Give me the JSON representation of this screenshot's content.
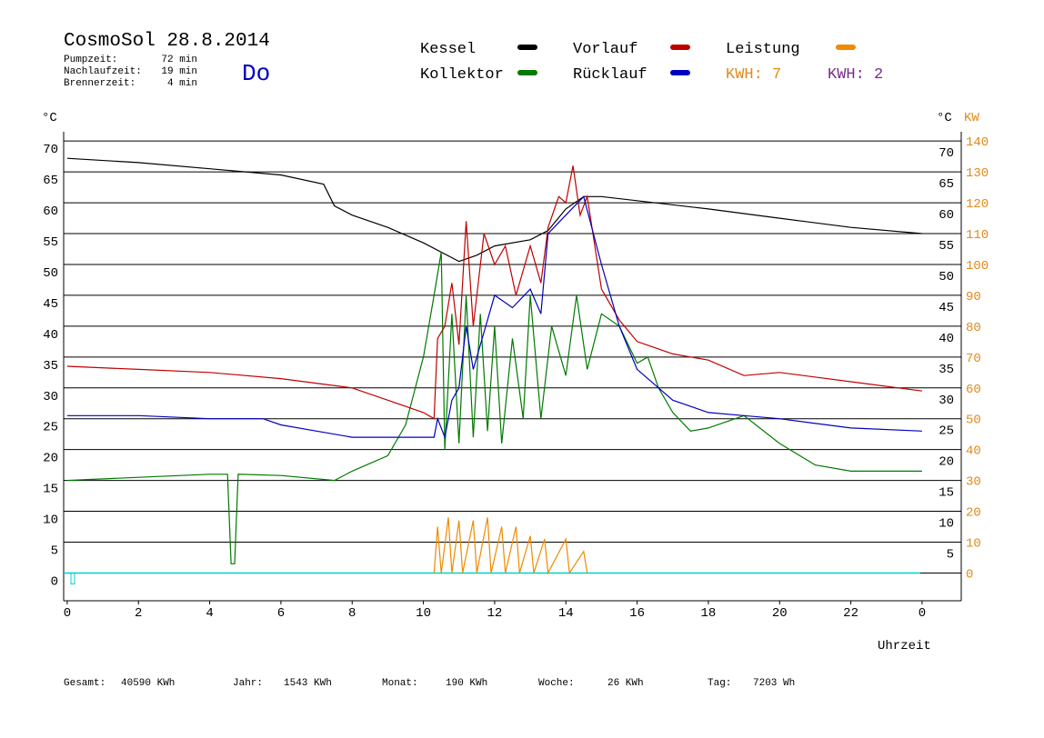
{
  "chart_data": {
    "type": "line",
    "title": "CosmoSol 28.8.2014",
    "day": "Do",
    "info": [
      [
        "Pumpzeit:",
        "72 min"
      ],
      [
        "Nachlaufzeit:",
        "19 min"
      ],
      [
        "Brennerzeit:",
        "4 min"
      ]
    ],
    "y_label": "°C",
    "y2_label_c": "°C",
    "y2_label": "KW",
    "x_label": "Uhrzeit",
    "kwh_labels": [
      {
        "text": "KWH: 7",
        "color": "#e08a1a"
      },
      {
        "text": "KWH: 2",
        "color": "#7a2a8a"
      }
    ],
    "footer": [
      [
        "Gesamt:",
        "40590 KWh"
      ],
      [
        "Jahr:",
        "1543 KWh"
      ],
      [
        "Monat:",
        "190 KWh"
      ],
      [
        "Woche:",
        "26 KWh"
      ],
      [
        "Tag:",
        "7203 Wh"
      ]
    ],
    "xlim": [
      -0.1,
      25.1
    ],
    "xticks": [
      0,
      2,
      4,
      6,
      8,
      10,
      12,
      14,
      16,
      18,
      20,
      22,
      {
        "value": 24,
        "label": "0"
      }
    ],
    "ylim": [
      -4.5,
      71.5
    ],
    "yticks": [
      0,
      5,
      10,
      15,
      20,
      25,
      30,
      35,
      40,
      45,
      50,
      55,
      60,
      65,
      70
    ],
    "yticks_right": [
      5,
      10,
      15,
      20,
      25,
      30,
      35,
      40,
      45,
      50,
      55,
      60,
      65,
      70
    ],
    "y2lim": [
      -9,
      143
    ],
    "y2ticks": [
      0,
      10,
      20,
      30,
      40,
      50,
      60,
      70,
      80,
      90,
      100,
      110,
      120,
      130,
      140
    ],
    "grid": true,
    "series": [
      {
        "name": "Kessel",
        "color": "#000000",
        "x": [
          0,
          2,
          4,
          6,
          7.2,
          7.5,
          8,
          9,
          10,
          11,
          11.5,
          12,
          13,
          13.5,
          14,
          14.5,
          15,
          18,
          20,
          22,
          24
        ],
        "values": [
          67.2,
          66.5,
          65.5,
          64.5,
          63,
          59.5,
          58,
          56,
          53.5,
          50.5,
          51.5,
          53,
          54,
          55.5,
          59,
          61,
          61,
          59,
          57.5,
          56,
          55
        ]
      },
      {
        "name": "Kollektor",
        "color": "#007a00",
        "x": [
          0,
          2,
          4,
          4.5,
          4.6,
          4.7,
          4.8,
          6,
          7.5,
          8,
          9,
          9.5,
          10,
          10.3,
          10.5,
          10.6,
          10.8,
          11,
          11.2,
          11.4,
          11.6,
          11.8,
          12,
          12.2,
          12.5,
          12.8,
          13,
          13.3,
          13.6,
          14,
          14.3,
          14.6,
          15,
          15.5,
          16,
          16.3,
          16.6,
          17,
          17.5,
          18,
          19,
          20,
          21,
          22,
          24
        ],
        "values": [
          15,
          15.5,
          16,
          16,
          1.5,
          1.5,
          16,
          15.8,
          15,
          16.5,
          19,
          24,
          35,
          45,
          52,
          20,
          42,
          21,
          45,
          22,
          42,
          23,
          40,
          21,
          38,
          25,
          45,
          25,
          40,
          32,
          45,
          33,
          42,
          40,
          34,
          35,
          30,
          26,
          23,
          23.5,
          25.5,
          21,
          17.5,
          16.5,
          16.5
        ]
      },
      {
        "name": "Vorlauf",
        "color": "#c00000",
        "x": [
          0,
          2,
          4,
          6,
          8,
          9,
          10,
          10.3,
          10.4,
          10.6,
          10.8,
          11,
          11.2,
          11.4,
          11.7,
          12,
          12.3,
          12.6,
          13,
          13.3,
          13.5,
          13.8,
          14,
          14.2,
          14.4,
          14.6,
          15,
          15.5,
          16,
          17,
          18,
          19,
          20,
          22,
          24
        ],
        "values": [
          33.5,
          33,
          32.5,
          31.5,
          30,
          28,
          26,
          25,
          38,
          40,
          47,
          37,
          57,
          40,
          55,
          50,
          53,
          45,
          53,
          47,
          56,
          61,
          60,
          66,
          58,
          61,
          46,
          41,
          37.5,
          35.5,
          34.5,
          32,
          32.5,
          31,
          29.5
        ]
      },
      {
        "name": "Rücklauf",
        "color": "#0000c0",
        "x": [
          0,
          2,
          4,
          5.5,
          6,
          7,
          8,
          10.3,
          10.4,
          10.6,
          10.8,
          11,
          11.2,
          11.4,
          11.8,
          12,
          12.5,
          13,
          13.3,
          13.5,
          14,
          14.5,
          15,
          15.5,
          16,
          17,
          18,
          19,
          20,
          22,
          24
        ],
        "values": [
          25.5,
          25.5,
          25,
          25,
          24,
          23,
          22,
          22,
          25,
          22,
          28,
          30,
          40,
          33,
          41,
          45,
          43,
          46,
          42,
          55,
          58,
          61,
          50,
          40,
          33,
          28,
          26,
          25.5,
          25,
          23.5,
          23
        ]
      },
      {
        "name": "Leistung",
        "color": "#f08a00",
        "axis": "y2",
        "x": [
          10.3,
          10.4,
          10.5,
          10.7,
          10.8,
          11,
          11.1,
          11.4,
          11.5,
          11.8,
          11.9,
          12.2,
          12.3,
          12.6,
          12.7,
          13,
          13.1,
          13.4,
          13.5,
          14,
          14.1,
          14.5,
          14.6
        ],
        "values": [
          0,
          15,
          0,
          18,
          0,
          17,
          0,
          17,
          0,
          18,
          0,
          15,
          0,
          15,
          0,
          12,
          0,
          11,
          0,
          11,
          0,
          7,
          0
        ]
      }
    ]
  }
}
